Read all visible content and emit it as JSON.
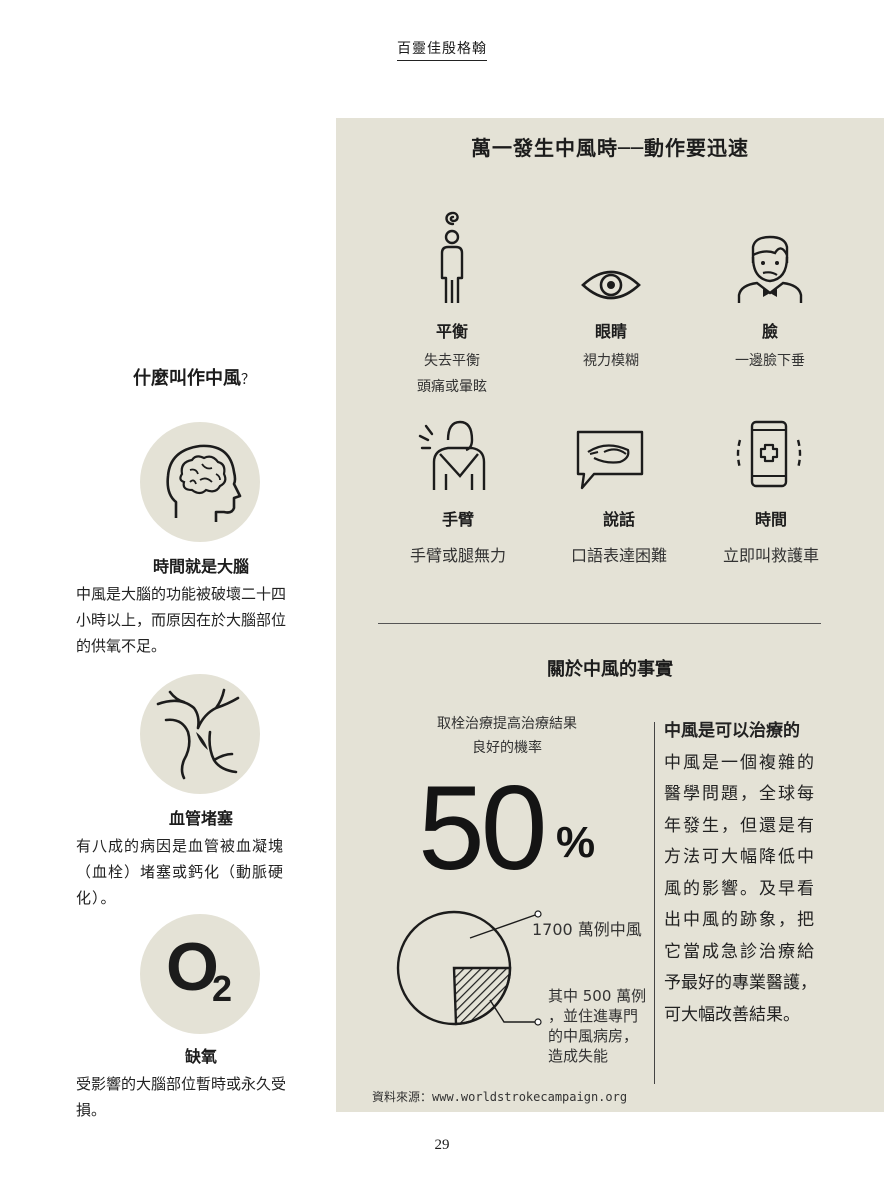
{
  "header": {
    "title": "百靈佳殷格翰"
  },
  "panel": {
    "title": "萬一發生中風時──動作要迅速",
    "symptoms": [
      {
        "title": "平衡",
        "desc1": "失去平衡",
        "desc2": "頭痛或暈眩",
        "icon": "person-dizzy-icon"
      },
      {
        "title": "眼睛",
        "desc1": "視力模糊",
        "icon": "eye-icon"
      },
      {
        "title": "臉",
        "desc1": "一邊臉下垂",
        "icon": "face-icon"
      },
      {
        "title": "手臂",
        "desc1": "手臂或腿無力",
        "icon": "arm-sling-icon"
      },
      {
        "title": "說話",
        "desc1": "口語表達困難",
        "icon": "speech-bubble-icon"
      },
      {
        "title": "時間",
        "desc1": "立即叫救護車",
        "icon": "phone-emergency-icon"
      }
    ],
    "facts_title": "關於中風的事實",
    "stat": {
      "caption1": "取栓治療提高治療結果",
      "caption2": "良好的機率",
      "value": "50",
      "unit": "%"
    },
    "pie": {
      "label_total": "1700 萬例中風",
      "label_part_lines": [
        "其中 500 萬例",
        "，並住進專門",
        "的中風病房，",
        "造成失能"
      ]
    },
    "treatable": {
      "title": "中風是可以治療的",
      "lines": [
        "中風是一個複雜的",
        "醫學問題，全球每",
        "年發生，但還是有",
        "方法可大幅降低中",
        "風的影響。及早看",
        "出中風的跡象，把",
        "它當成急診治療給",
        "予最好的專業醫護，",
        "可大幅改善結果。"
      ]
    },
    "source": "資料來源：www.worldstrokecampaign.org"
  },
  "left": {
    "title": "什麼叫作中風",
    "title_mark": "？",
    "items": [
      {
        "heading": "時間就是大腦",
        "lines": [
          "中風是大腦的功能被破壞二十四",
          "小時以上，而原因在於大腦部位",
          "的供氧不足。"
        ],
        "icon": "brain-head-icon"
      },
      {
        "heading": "血管堵塞",
        "lines": [
          "有八成的病因是血管被血凝塊",
          "（血栓）堵塞或鈣化（動脈硬",
          "化）。"
        ],
        "icon": "blood-vessel-icon"
      },
      {
        "heading": "缺氧",
        "lines": [
          "受影響的大腦部位暫時或永久受",
          "損。"
        ],
        "icon": "oxygen-icon",
        "symbol": "O",
        "sub": "2"
      }
    ]
  },
  "page_number": "29"
}
